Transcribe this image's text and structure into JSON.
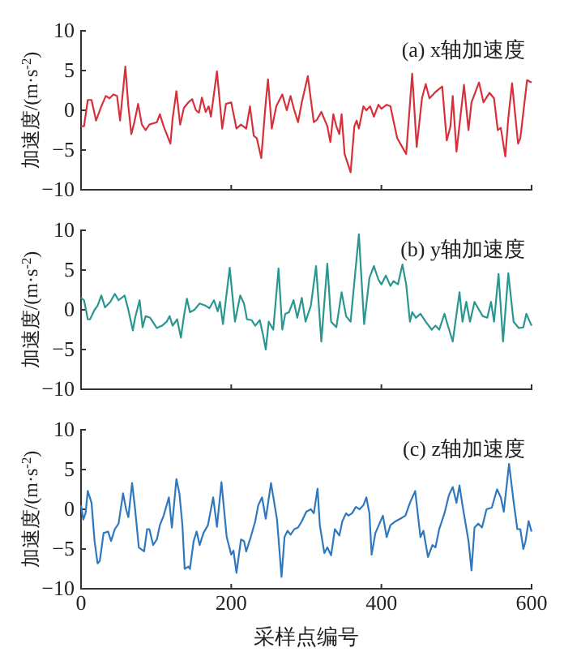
{
  "chart_data": [
    {
      "type": "line",
      "title": "(a) x轴加速度",
      "ylabel": "加速度/(m·s$^{-2}$)",
      "xlim": [
        0,
        600
      ],
      "xticks": [
        0,
        200,
        400,
        600
      ],
      "ylim": [
        -10,
        10
      ],
      "yticks": [
        -10,
        -5,
        0,
        5,
        10
      ],
      "tick_labels": "y",
      "series": [
        {
          "color": "#d7303a",
          "x": [
            0,
            4,
            9,
            14,
            20,
            27,
            33,
            38,
            43,
            48,
            52,
            59,
            63,
            67,
            71,
            76,
            81,
            86,
            91,
            101,
            105,
            110,
            119,
            122,
            127,
            132,
            137,
            143,
            148,
            153,
            157,
            161,
            166,
            170,
            173,
            181,
            188,
            193,
            200,
            207,
            213,
            220,
            225,
            230,
            234,
            240,
            246,
            249,
            254,
            260,
            268,
            274,
            279,
            284,
            289,
            294,
            302,
            310,
            314,
            320,
            328,
            332,
            336,
            340,
            344,
            347,
            351,
            359,
            364,
            367,
            370,
            376,
            380,
            385,
            390,
            396,
            400,
            407,
            412,
            421,
            433,
            441,
            447,
            454,
            459,
            464,
            472,
            481,
            487,
            492,
            495,
            500,
            505,
            510,
            516,
            520,
            530,
            536,
            544,
            550,
            555,
            559,
            565,
            569,
            574,
            582,
            585,
            594,
            600
          ],
          "values": [
            -2,
            -2,
            1.3,
            1.3,
            -1.3,
            0.5,
            1.8,
            1.5,
            2,
            1.8,
            -1.3,
            5.5,
            0.5,
            -3,
            -1.5,
            0.8,
            -1.8,
            -2.5,
            -1.8,
            -1.5,
            -0.5,
            -2,
            -4.2,
            -1,
            2.4,
            -1.8,
            0.3,
            1,
            1.4,
            0,
            -0.3,
            1.6,
            -0.2,
            0.5,
            -0.8,
            4.9,
            -2.3,
            0.8,
            1,
            -2.3,
            -1.8,
            -2.3,
            0.5,
            -3.2,
            -3.5,
            -6,
            1,
            3.9,
            -2.3,
            0.5,
            2,
            0,
            1.8,
            0,
            -1.5,
            1,
            4.3,
            -1.5,
            -1.2,
            -0.2,
            -2,
            -4,
            -0.5,
            -2,
            -3,
            -0.5,
            -5.5,
            -7.8,
            -2,
            -1.3,
            -2.3,
            0.5,
            0,
            0.5,
            -0.8,
            0.7,
            0.2,
            0.7,
            0.5,
            -3.5,
            -5.5,
            4.6,
            -4.6,
            1.5,
            3.3,
            1.5,
            2.3,
            3,
            -3.8,
            -2,
            1.8,
            -5.2,
            -1,
            3.2,
            -2.5,
            1,
            3.5,
            1,
            2.2,
            1.5,
            -2.5,
            -2.2,
            -5.8,
            -1,
            3.4,
            -4.2,
            -3.5,
            3.8,
            3.5
          ]
        }
      ]
    },
    {
      "type": "line",
      "title": "(b) y轴加速度",
      "ylabel": "加速度/(m·s$^{-2}$)",
      "xlim": [
        0,
        600
      ],
      "xticks": [
        0,
        200,
        400,
        600
      ],
      "ylim": [
        -10,
        10
      ],
      "yticks": [
        -10,
        -5,
        0,
        5,
        10
      ],
      "tick_labels": "y",
      "series": [
        {
          "color": "#2a9690",
          "x": [
            0,
            4,
            9,
            12,
            18,
            22,
            27,
            32,
            39,
            45,
            50,
            58,
            63,
            69,
            72,
            78,
            82,
            86,
            92,
            101,
            108,
            114,
            118,
            122,
            128,
            133,
            137,
            141,
            145,
            151,
            158,
            166,
            171,
            177,
            182,
            185,
            189,
            198,
            205,
            212,
            217,
            221,
            227,
            232,
            238,
            242,
            246,
            250,
            256,
            263,
            268,
            272,
            277,
            283,
            288,
            294,
            299,
            306,
            313,
            320,
            328,
            333,
            340,
            347,
            353,
            359,
            370,
            377,
            384,
            390,
            396,
            400,
            406,
            412,
            416,
            422,
            428,
            433,
            438,
            441,
            446,
            452,
            459,
            467,
            472,
            477,
            484,
            487,
            495,
            504,
            508,
            513,
            518,
            524,
            530,
            535,
            541,
            546,
            550,
            556,
            562,
            569,
            576,
            583,
            589,
            593,
            600
          ],
          "values": [
            1.5,
            1.2,
            -1.2,
            -1.2,
            0,
            0.5,
            1.8,
            0.3,
            1,
            2,
            1.2,
            1.8,
            0,
            -2.6,
            -1,
            1.2,
            -2.2,
            -0.8,
            -1,
            -2.3,
            -2,
            -1.5,
            -0.8,
            -2,
            -1.2,
            -3.5,
            -0.8,
            1.4,
            -0.3,
            0,
            0.8,
            0.5,
            0.2,
            1.2,
            -0.2,
            1,
            -1.8,
            5.3,
            -1.5,
            1.8,
            0.8,
            -1.2,
            -1.3,
            -2,
            -1.3,
            -3,
            -5,
            -1.5,
            -2.5,
            5.2,
            -2.5,
            -0.5,
            -0.3,
            1.2,
            -1,
            1.5,
            -1.5,
            0.5,
            5.5,
            -4,
            5.8,
            -1.5,
            -2.2,
            2.2,
            -0.8,
            -1.5,
            9.5,
            -1.8,
            4,
            5.5,
            3.8,
            3.2,
            4.3,
            3,
            3.6,
            3.2,
            5.7,
            3.2,
            -1.5,
            -0.3,
            -1,
            -0.5,
            -1.5,
            -2.5,
            -2,
            -2.5,
            -0.5,
            -1.5,
            -4,
            2.2,
            -1.5,
            1,
            -1.5,
            1,
            0,
            -0.8,
            -1,
            1,
            -1.5,
            4.5,
            -4,
            4.6,
            -1.5,
            -2.3,
            -2.2,
            -0.5,
            -2
          ]
        }
      ]
    },
    {
      "type": "line",
      "title": "(c) z轴加速度",
      "ylabel": "加速度/(m·s$^{-2}$)",
      "xlabel": "采样点编号",
      "xlim": [
        0,
        600
      ],
      "xticks": [
        0,
        200,
        400,
        600
      ],
      "ylim": [
        -10,
        10
      ],
      "yticks": [
        -10,
        -5,
        0,
        5,
        10
      ],
      "series": [
        {
          "color": "#2f78be",
          "x": [
            0,
            3,
            6,
            9,
            14,
            18,
            22,
            25,
            30,
            36,
            40,
            45,
            50,
            56,
            60,
            63,
            68,
            72,
            77,
            84,
            88,
            91,
            96,
            101,
            105,
            110,
            117,
            121,
            127,
            131,
            135,
            138,
            143,
            145,
            150,
            154,
            158,
            163,
            169,
            176,
            181,
            187,
            194,
            200,
            203,
            207,
            213,
            217,
            220,
            226,
            232,
            236,
            241,
            246,
            253,
            261,
            267,
            271,
            275,
            279,
            284,
            289,
            294,
            300,
            306,
            310,
            315,
            318,
            324,
            328,
            333,
            338,
            344,
            348,
            353,
            356,
            361,
            366,
            371,
            376,
            380,
            384,
            387,
            392,
            402,
            407,
            412,
            419,
            425,
            432,
            438,
            445,
            452,
            456,
            462,
            468,
            472,
            477,
            484,
            490,
            495,
            500,
            504,
            508,
            516,
            520,
            524,
            529,
            534,
            540,
            547,
            554,
            559,
            563,
            570,
            576,
            581,
            585,
            589,
            592,
            596,
            600
          ],
          "values": [
            0.5,
            -1.3,
            -0.5,
            2.3,
            0.8,
            -4,
            -6.8,
            -6.5,
            -3,
            -2.8,
            -4,
            -2.5,
            -1.8,
            2,
            0,
            -1,
            3.3,
            0,
            -4.8,
            -5.3,
            -2.5,
            -2.5,
            -4.5,
            -3.8,
            -2,
            -0.8,
            1.5,
            -2.3,
            3.8,
            2,
            -2,
            -7.5,
            -7.2,
            -7.5,
            -4,
            -2.8,
            -4.5,
            -3,
            -2,
            1.5,
            -2.2,
            3.4,
            -3.5,
            -5.7,
            -5.2,
            -8,
            -3.8,
            -4,
            -5.3,
            -3.5,
            -1.5,
            0.5,
            1.5,
            -1.2,
            3.3,
            -1.3,
            -8.5,
            -3.5,
            -2.7,
            -3.2,
            -2.5,
            -2.3,
            -1.5,
            -0.3,
            0,
            -0.5,
            2.6,
            -2,
            -5.5,
            -4.8,
            -5.8,
            -2.5,
            -3.3,
            -1.5,
            -0.5,
            -0.8,
            -0.5,
            0.3,
            0,
            0.5,
            1.5,
            -0.5,
            -5.7,
            -3,
            -0.8,
            -3.5,
            -2,
            -1.5,
            -1.2,
            -0.8,
            0.8,
            2.3,
            -3.5,
            -2.7,
            -6,
            -4.5,
            -4.8,
            -2.5,
            -0.5,
            1.8,
            2.8,
            0.8,
            3,
            0.5,
            -4,
            -7.7,
            -2.3,
            -1.8,
            -2.3,
            0,
            0.2,
            2.5,
            1.5,
            -0.3,
            5.7,
            1,
            -2.5,
            -2.5,
            -5,
            -4,
            -1.5,
            -2.8
          ]
        }
      ]
    }
  ]
}
